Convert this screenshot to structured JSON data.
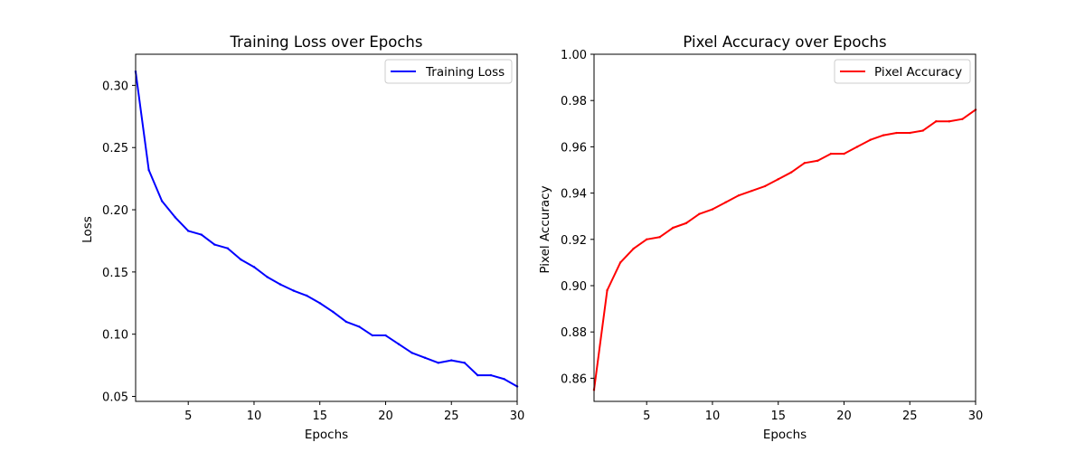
{
  "chart_data": [
    {
      "type": "line",
      "title": "Training Loss over Epochs",
      "xlabel": "Epochs",
      "ylabel": "Loss",
      "xlim": [
        1,
        30
      ],
      "ylim": [
        0.046,
        0.325
      ],
      "xticks": [
        5,
        10,
        15,
        20,
        25,
        30
      ],
      "yticks": [
        0.05,
        0.1,
        0.15,
        0.2,
        0.25,
        0.3
      ],
      "ytick_decimals": 2,
      "grid": false,
      "legend_position": "top-right",
      "series": [
        {
          "name": "Training Loss",
          "color": "#0000ff",
          "x": [
            1,
            2,
            3,
            4,
            5,
            6,
            7,
            8,
            9,
            10,
            11,
            12,
            13,
            14,
            15,
            16,
            17,
            18,
            19,
            20,
            21,
            22,
            23,
            24,
            25,
            26,
            27,
            28,
            29,
            30
          ],
          "values": [
            0.311,
            0.232,
            0.207,
            0.194,
            0.183,
            0.18,
            0.172,
            0.169,
            0.16,
            0.154,
            0.146,
            0.14,
            0.135,
            0.131,
            0.125,
            0.118,
            0.11,
            0.106,
            0.099,
            0.099,
            0.092,
            0.085,
            0.081,
            0.077,
            0.079,
            0.077,
            0.067,
            0.067,
            0.064,
            0.058
          ]
        }
      ]
    },
    {
      "type": "line",
      "title": "Pixel Accuracy over Epochs",
      "xlabel": "Epochs",
      "ylabel": "Pixel Accuracy",
      "xlim": [
        1,
        30
      ],
      "ylim": [
        0.85,
        1.0
      ],
      "xticks": [
        5,
        10,
        15,
        20,
        25,
        30
      ],
      "yticks": [
        0.86,
        0.88,
        0.9,
        0.92,
        0.94,
        0.96,
        0.98,
        1.0
      ],
      "ytick_decimals": 2,
      "grid": false,
      "legend_position": "top-right",
      "series": [
        {
          "name": "Pixel Accuracy",
          "color": "#ff0000",
          "x": [
            1,
            2,
            3,
            4,
            5,
            6,
            7,
            8,
            9,
            10,
            11,
            12,
            13,
            14,
            15,
            16,
            17,
            18,
            19,
            20,
            21,
            22,
            23,
            24,
            25,
            26,
            27,
            28,
            29,
            30
          ],
          "values": [
            0.855,
            0.898,
            0.91,
            0.916,
            0.92,
            0.921,
            0.925,
            0.927,
            0.931,
            0.933,
            0.936,
            0.939,
            0.941,
            0.943,
            0.946,
            0.949,
            0.953,
            0.954,
            0.957,
            0.957,
            0.96,
            0.963,
            0.965,
            0.966,
            0.966,
            0.967,
            0.971,
            0.971,
            0.972,
            0.976
          ]
        }
      ]
    }
  ]
}
